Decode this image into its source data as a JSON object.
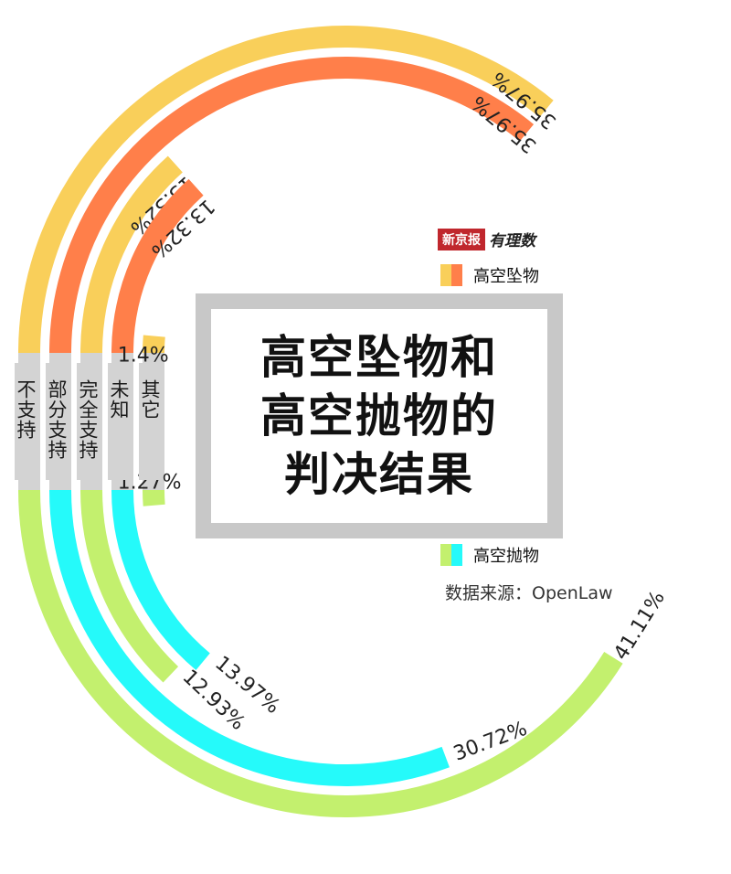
{
  "colors": {
    "falling_outer": "#f9cf5a",
    "falling_inner": "#ff7f4a",
    "throwing_outer": "#c3f06e",
    "throwing_inner": "#25fafa",
    "gray": "#d3d3d3"
  },
  "brand": {
    "paper": "新京报",
    "sub": "有理数"
  },
  "title": {
    "line1": "高空坠物和",
    "line2": "高空抛物的",
    "line3": "判决结果"
  },
  "legend": {
    "falling": "高空坠物",
    "throwing": "高空抛物"
  },
  "source": "数据来源：OpenLaw",
  "categories": [
    "不支持",
    "部分支持",
    "完全支持",
    "未知",
    "其它"
  ],
  "chart_data": {
    "type": "radial-bar",
    "categories": [
      "不支持",
      "部分支持",
      "完全支持",
      "未知",
      "其它"
    ],
    "series": [
      {
        "name": "高空坠物",
        "values": [
          35.97,
          35.97,
          13.32,
          13.32,
          1.4
        ]
      },
      {
        "name": "高空抛物",
        "values": [
          41.11,
          30.72,
          12.93,
          13.97,
          1.27
        ]
      }
    ],
    "value_labels": {
      "falling": [
        "35.97%",
        "35.97%",
        "13.32%",
        "13.32%",
        "1.4%"
      ],
      "throwing": [
        "41.11%",
        "30.72%",
        "12.93%",
        "13.97%",
        "1.27%"
      ]
    }
  }
}
